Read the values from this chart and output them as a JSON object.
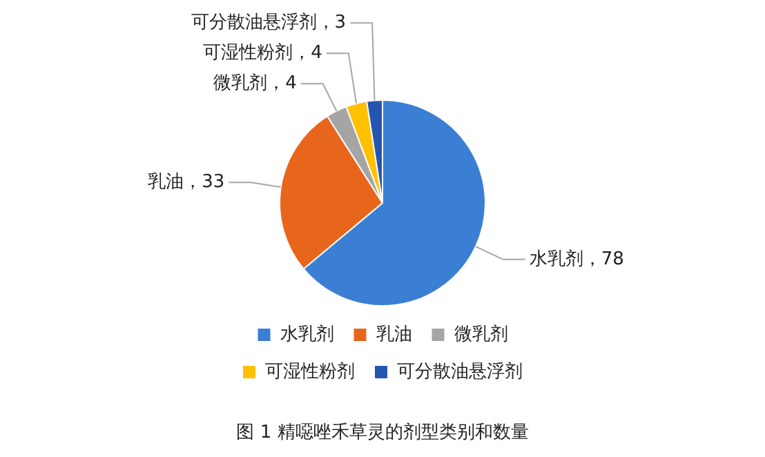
{
  "chart_data": {
    "type": "pie",
    "categories": [
      "水乳剂",
      "乳油",
      "微乳剂",
      "可湿性粉剂",
      "可分散油悬浮剂"
    ],
    "values": [
      78,
      33,
      4,
      4,
      3
    ],
    "colors": [
      "#3b7fd4",
      "#e8661c",
      "#a5a5a5",
      "#ffc000",
      "#2456b0"
    ],
    "value_labels": [
      "水乳剂，78",
      "乳油，33",
      "微乳剂，4",
      "可湿性粉剂，4",
      "可分散油悬浮剂，3"
    ],
    "legend": "bottom",
    "annotations": [
      "图 1  精噁唑禾草灵的剂型类别和数量"
    ]
  }
}
